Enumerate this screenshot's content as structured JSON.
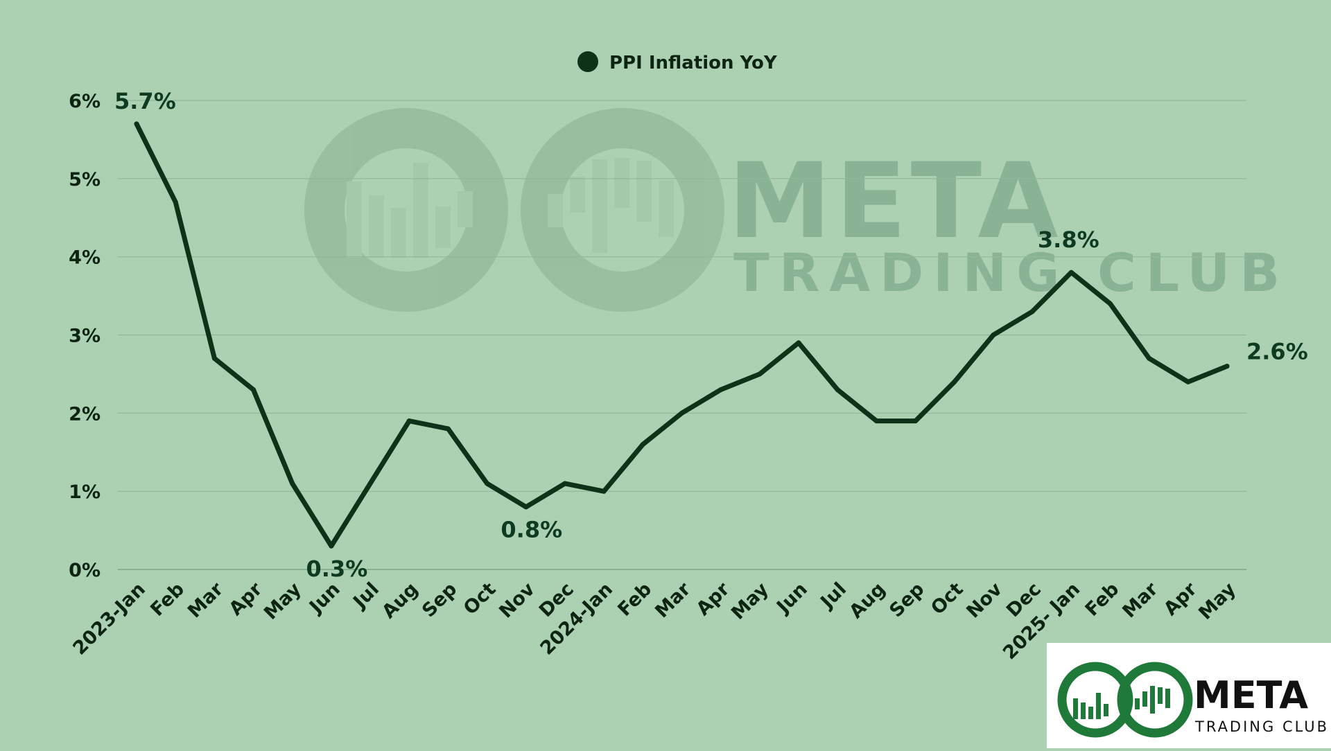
{
  "watermark": {
    "brand": "META",
    "subtitle": "TRADING CLUB"
  },
  "logo": {
    "brand": "META",
    "subtitle": "TRADING CLUB"
  },
  "colors": {
    "background": "#acd0b2",
    "line": "#0c3318",
    "legend_marker": "#0c3318",
    "gridline": "#8fb898",
    "logo_green": "#1f7a3a"
  },
  "chart_data": {
    "type": "line",
    "title": "",
    "xlabel": "",
    "ylabel": "",
    "ylim": [
      0,
      6
    ],
    "yticks": [
      0,
      1,
      2,
      3,
      4,
      5,
      6
    ],
    "ytick_labels": [
      "0%",
      "1%",
      "2%",
      "3%",
      "4%",
      "5%",
      "6%"
    ],
    "grid": "horizontal",
    "legend_position": "top-center",
    "categories": [
      "2023-Jan",
      "Feb",
      "Mar",
      "Apr",
      "May",
      "Jun",
      "Jul",
      "Aug",
      "Sep",
      "Oct",
      "Nov",
      "Dec",
      "2024-Jan",
      "Feb",
      "Mar",
      "Apr",
      "May",
      "Jun",
      "Jul",
      "Aug",
      "Sep",
      "Oct",
      "Nov",
      "Dec",
      "2025- Jan",
      "Feb",
      "Mar",
      "Apr",
      "May"
    ],
    "series": [
      {
        "name": "PPI Inflation YoY",
        "values": [
          5.7,
          4.7,
          2.7,
          2.3,
          1.1,
          0.3,
          1.1,
          1.9,
          1.8,
          1.1,
          0.8,
          1.1,
          1.0,
          1.6,
          2.0,
          2.3,
          2.5,
          2.9,
          2.3,
          1.9,
          1.9,
          2.4,
          3.0,
          3.3,
          3.8,
          3.4,
          2.7,
          2.4,
          2.6
        ]
      }
    ],
    "annotations": [
      {
        "index": 0,
        "text": "5.7%"
      },
      {
        "index": 5,
        "text": "0.3%"
      },
      {
        "index": 10,
        "text": "0.8%"
      },
      {
        "index": 24,
        "text": "3.8%"
      },
      {
        "index": 28,
        "text": "2.6%"
      }
    ]
  }
}
